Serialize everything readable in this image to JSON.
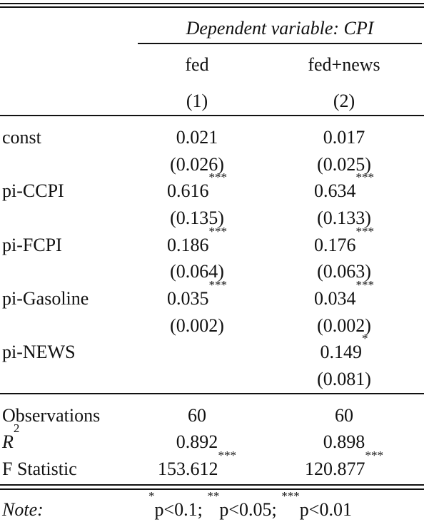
{
  "header": {
    "dependent_variable": "Dependent variable: CPI",
    "col1_name": "fed",
    "col2_name": "fed+news",
    "col1_num": "(1)",
    "col2_num": "(2)"
  },
  "rows": [
    {
      "label": "const",
      "c1": "0.021",
      "c1_stars": "",
      "c1_se": "(0.026)",
      "c2": "0.017",
      "c2_stars": "",
      "c2_se": "(0.025)"
    },
    {
      "label": "pi-CCPI",
      "c1": "0.616",
      "c1_stars": "***",
      "c1_se": "(0.135)",
      "c2": "0.634",
      "c2_stars": "***",
      "c2_se": "(0.133)"
    },
    {
      "label": "pi-FCPI",
      "c1": "0.186",
      "c1_stars": "***",
      "c1_se": "(0.064)",
      "c2": "0.176",
      "c2_stars": "***",
      "c2_se": "(0.063)"
    },
    {
      "label": "pi-Gasoline",
      "c1": "0.035",
      "c1_stars": "***",
      "c1_se": "(0.002)",
      "c2": "0.034",
      "c2_stars": "***",
      "c2_se": "(0.002)"
    },
    {
      "label": "pi-NEWS",
      "c1": "",
      "c1_stars": "",
      "c1_se": "",
      "c2": "0.149",
      "c2_stars": "*",
      "c2_se": "(0.081)"
    }
  ],
  "stats": {
    "obs_label": "Observations",
    "obs_c1": "60",
    "obs_c2": "60",
    "r2_label": "R",
    "r2_sup": "2",
    "r2_c1": "0.892",
    "r2_c2": "0.898",
    "f_label": "F Statistic",
    "f_c1": "153.612",
    "f_c1_stars": "***",
    "f_c2": "120.877",
    "f_c2_stars": "***"
  },
  "note": {
    "label": "Note:",
    "s1": "*",
    "t1": "p<0.1; ",
    "s2": "**",
    "t2": "p<0.05; ",
    "s3": "***",
    "t3": "p<0.01"
  }
}
